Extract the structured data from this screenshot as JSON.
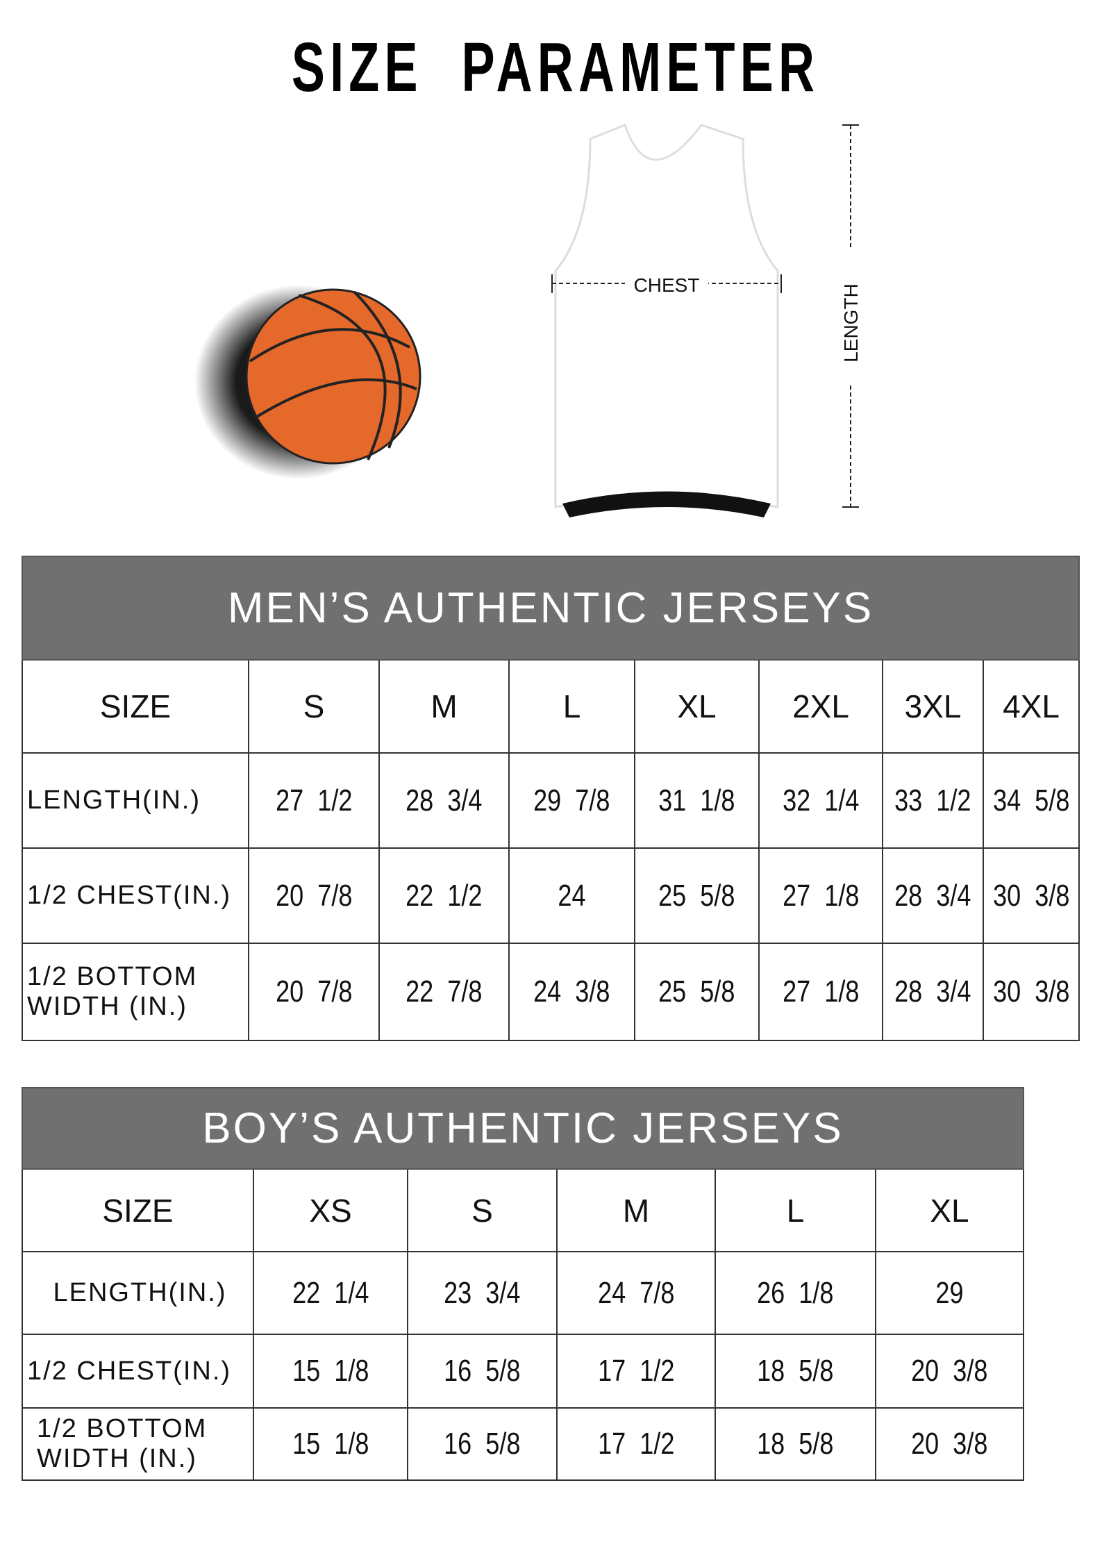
{
  "title": "SIZE PARAMETER",
  "diagram": {
    "chest_label": "CHEST",
    "length_label": "LENGTH"
  },
  "colors": {
    "header_bg": "#707070",
    "ball": "#e4692b"
  },
  "mens": {
    "title": "MEN’S AUTHENTIC JERSEYS",
    "size_label": "SIZE",
    "sizes": [
      "S",
      "M",
      "L",
      "XL",
      "2XL",
      "3XL",
      "4XL"
    ],
    "rows": [
      {
        "label": "LENGTH(IN.)",
        "values": [
          "27  1/2",
          "28  3/4",
          "29  7/8",
          "31  1/8",
          "32  1/4",
          "33  1/2",
          "34  5/8"
        ]
      },
      {
        "label": "1/2 CHEST(IN.)",
        "values": [
          "20  7/8",
          "22  1/2",
          "24",
          "25  5/8",
          "27  1/8",
          "28  3/4",
          "30  3/8"
        ]
      },
      {
        "label": "1/2 BOTTOM WIDTH  (IN.)",
        "values": [
          "20  7/8",
          "22  7/8",
          "24  3/8",
          "25  5/8",
          "27  1/8",
          "28  3/4",
          "30  3/8"
        ]
      }
    ]
  },
  "boys": {
    "title": "BOY’S AUTHENTIC JERSEYS",
    "size_label": "SIZE",
    "sizes": [
      "XS",
      "S",
      "M",
      "L",
      "XL"
    ],
    "rows": [
      {
        "label": "LENGTH(IN.)",
        "values": [
          "22  1/4",
          "23  3/4",
          "24  7/8",
          "26  1/8",
          "29"
        ]
      },
      {
        "label": "1/2 CHEST(IN.)",
        "values": [
          "15  1/8",
          "16  5/8",
          "17  1/2",
          "18  5/8",
          "20  3/8"
        ]
      },
      {
        "label": "1/2 BOTTOM WIDTH  (IN.)",
        "values": [
          "15  1/8",
          "16  5/8",
          "17  1/2",
          "18  5/8",
          "20  3/8"
        ]
      }
    ]
  }
}
